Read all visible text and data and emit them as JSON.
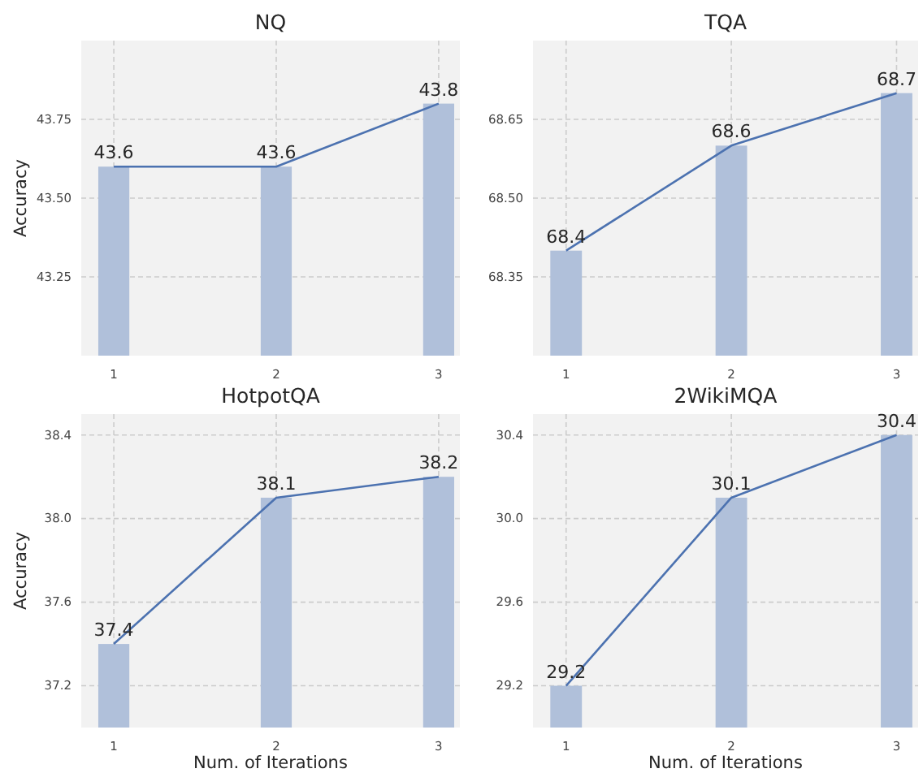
{
  "chart_data": [
    {
      "type": "bar",
      "title": "NQ",
      "ylabel": "Accuracy",
      "categories": [
        "1",
        "2",
        "3"
      ],
      "series": [
        {
          "color": "#b0c0da",
          "values": [
            43.6,
            43.6,
            43.8
          ]
        },
        {
          "type": "line",
          "color": "#4c72b0",
          "values": [
            43.6,
            43.6,
            43.8
          ],
          "value_labels": [
            "43.6",
            "43.6",
            "43.8"
          ]
        }
      ],
      "ylim": [
        43.0,
        44.0
      ],
      "yticks": [
        {
          "value": 43.25,
          "label": "43.25"
        },
        {
          "value": 43.5,
          "label": "43.50"
        },
        {
          "value": 43.75,
          "label": "43.75"
        }
      ],
      "grid": true,
      "marker": "none"
    },
    {
      "type": "bar",
      "title": "TQA",
      "categories": [
        "1",
        "2",
        "3"
      ],
      "series": [
        {
          "color": "#b0c0da",
          "values": [
            68.4,
            68.6,
            68.7
          ]
        },
        {
          "type": "line",
          "color": "#4c72b0",
          "values": [
            68.4,
            68.6,
            68.7
          ],
          "value_labels": [
            "68.4",
            "68.6",
            "68.7"
          ]
        }
      ],
      "ylim": [
        68.2,
        68.8
      ],
      "yticks": [
        {
          "value": 68.35,
          "label": "68.35"
        },
        {
          "value": 68.5,
          "label": "68.50"
        },
        {
          "value": 68.65,
          "label": "68.65"
        }
      ],
      "grid": true,
      "marker": "none"
    },
    {
      "type": "bar",
      "title": "HotpotQA",
      "xlabel": "Num. of Iterations",
      "ylabel": "Accuracy",
      "categories": [
        "1",
        "2",
        "3"
      ],
      "series": [
        {
          "color": "#b0c0da",
          "values": [
            37.4,
            38.1,
            38.2
          ]
        },
        {
          "type": "line",
          "color": "#4c72b0",
          "values": [
            37.4,
            38.1,
            38.2
          ],
          "value_labels": [
            "37.4",
            "38.1",
            "38.2"
          ]
        }
      ],
      "ylim": [
        37.0,
        38.5
      ],
      "yticks": [
        {
          "value": 37.2,
          "label": "37.2"
        },
        {
          "value": 37.6,
          "label": "37.6"
        },
        {
          "value": 38.0,
          "label": "38.0"
        },
        {
          "value": 38.4,
          "label": "38.4"
        }
      ],
      "grid": true,
      "marker": "none"
    },
    {
      "type": "bar",
      "title": "2WikiMQA",
      "xlabel": "Num. of Iterations",
      "categories": [
        "1",
        "2",
        "3"
      ],
      "series": [
        {
          "color": "#b0c0da",
          "values": [
            29.2,
            30.1,
            30.4
          ]
        },
        {
          "type": "line",
          "color": "#4c72b0",
          "values": [
            29.2,
            30.1,
            30.4
          ],
          "value_labels": [
            "29.2",
            "30.1",
            "30.4"
          ]
        }
      ],
      "ylim": [
        29.0,
        30.5
      ],
      "yticks": [
        {
          "value": 29.2,
          "label": "29.2"
        },
        {
          "value": 29.6,
          "label": "29.6"
        },
        {
          "value": 30.0,
          "label": "30.0"
        },
        {
          "value": 30.4,
          "label": "30.4"
        }
      ],
      "grid": true,
      "marker": "none"
    }
  ]
}
